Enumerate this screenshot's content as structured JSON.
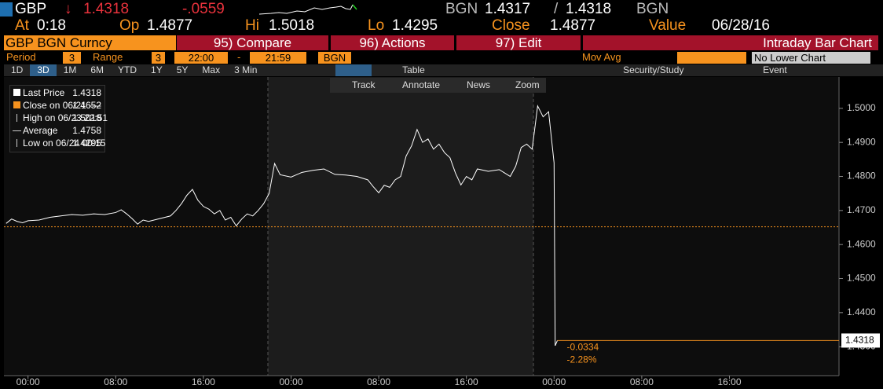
{
  "quote": {
    "ticker": "GBP",
    "arrow": "↓",
    "last": "1.4318",
    "change": "-.0559",
    "bid_source": "BGN",
    "bid": "1.4317",
    "separator": "/",
    "ask": "1.4318",
    "ask_source": "BGN"
  },
  "stats": {
    "at_label": "At",
    "at": "0:18",
    "open_label": "Op",
    "open": "1.4877",
    "high_label": "Hi",
    "high": "1.5018",
    "low_label": "Lo",
    "low": "1.4295",
    "close_label": "Close",
    "close": "1.4877",
    "value_label": "Value",
    "value": "06/28/16"
  },
  "toolbar": {
    "security": "GBP BGN Curncy",
    "buttons": [
      "95) Compare",
      "96) Actions",
      "97) Edit"
    ],
    "title": "Intraday Bar Chart"
  },
  "params": {
    "period_label": "Period",
    "period": "3",
    "range_label": "Range",
    "range": "3",
    "start": "22:00",
    "dash": "-",
    "end": "21:59",
    "source": "BGN",
    "mov_avg": "Mov Avg",
    "lower_chart": "No Lower Chart"
  },
  "tabs": [
    "1D",
    "3D",
    "1M",
    "6M",
    "YTD",
    "1Y",
    "5Y",
    "Max"
  ],
  "interval": "3 Min",
  "table": "Table",
  "study": "Security/Study",
  "event": "Event",
  "chart_tools": [
    "Track",
    "Annotate",
    "News",
    "Zoom"
  ],
  "legend": [
    {
      "label": "Last Price",
      "value": "1.4318"
    },
    {
      "label": "Close on 06/21 ----",
      "value": "1.4652"
    },
    {
      "label": "High on 06/23 22:51",
      "value": "1.5018"
    },
    {
      "label": "Average",
      "value": "1.4758"
    },
    {
      "label": "Low on 06/24 00:15",
      "value": "1.4295"
    }
  ],
  "chart_data": {
    "type": "line",
    "x": [
      -2,
      -1.5,
      -1,
      -0.5,
      0,
      1,
      2,
      3,
      4,
      5,
      6,
      7,
      8,
      8.5,
      9,
      9.5,
      10,
      10.5,
      11,
      12,
      13,
      13.5,
      14,
      14.5,
      15,
      15.5,
      16,
      16.5,
      17,
      17.5,
      18,
      18.5,
      19,
      19.5,
      20,
      20.5,
      21,
      21.5,
      22,
      22.5,
      23,
      24,
      25,
      26,
      27,
      28,
      29,
      30,
      31,
      31.5,
      32,
      32.5,
      33,
      33.5,
      34,
      34.5,
      35,
      35.5,
      36,
      36.5,
      37,
      37.5,
      38,
      38.5,
      39,
      39.5,
      40,
      40.5,
      41,
      42,
      43,
      43.5,
      44,
      44.5,
      45,
      45.5,
      46,
      46.5,
      47,
      47.5,
      48,
      48.1,
      48.3
    ],
    "series": [
      {
        "name": "Last Price",
        "color": "#ffffff",
        "values": [
          1.4662,
          1.4675,
          1.4668,
          1.4664,
          1.467,
          1.4672,
          1.468,
          1.4684,
          1.4688,
          1.4686,
          1.469,
          1.4688,
          1.4694,
          1.4702,
          1.469,
          1.4676,
          1.466,
          1.4672,
          1.4668,
          1.4676,
          1.4684,
          1.47,
          1.472,
          1.4745,
          1.4762,
          1.473,
          1.4712,
          1.4704,
          1.469,
          1.47,
          1.4672,
          1.468,
          1.4655,
          1.4675,
          1.469,
          1.4684,
          1.47,
          1.472,
          1.475,
          1.4838,
          1.4805,
          1.4798,
          1.4812,
          1.4818,
          1.4822,
          1.4806,
          1.4804,
          1.48,
          1.479,
          1.477,
          1.4752,
          1.4774,
          1.4768,
          1.479,
          1.48,
          1.486,
          1.489,
          1.4938,
          1.49,
          1.491,
          1.488,
          1.4895,
          1.487,
          1.4855,
          1.481,
          1.4775,
          1.48,
          1.479,
          1.4822,
          1.4815,
          1.482,
          1.481,
          1.48,
          1.483,
          1.4885,
          1.4895,
          1.488,
          1.5007,
          1.4975,
          1.499,
          1.484,
          1.4303,
          1.4318
        ]
      }
    ],
    "prev_close": {
      "value": 1.4652,
      "color": "#f7931e"
    },
    "last_price": {
      "value": 1.4318,
      "label": "1.4318",
      "color": "#f7931e"
    },
    "annotations": [
      "-0.0334",
      "-2.28%"
    ],
    "xlim": [
      -2.2,
      74
    ],
    "xticks": [
      {
        "value": 0,
        "label": "00:00"
      },
      {
        "value": 8,
        "label": "08:00"
      },
      {
        "value": 16,
        "label": "16:00"
      },
      {
        "value": 24,
        "label": "00:00"
      },
      {
        "value": 32,
        "label": "08:00"
      },
      {
        "value": 40,
        "label": "16:00"
      },
      {
        "value": 48,
        "label": "00:00"
      },
      {
        "value": 56,
        "label": "08:00"
      },
      {
        "value": 64,
        "label": "16:00"
      }
    ],
    "ylim": [
      1.4215,
      1.5092
    ],
    "yticks": [
      {
        "value": 1.43,
        "label": "1.4300"
      },
      {
        "value": 1.44,
        "label": "1.4400"
      },
      {
        "value": 1.45,
        "label": "1.4500"
      },
      {
        "value": 1.46,
        "label": "1.4600"
      },
      {
        "value": 1.47,
        "label": "1.4700"
      },
      {
        "value": 1.48,
        "label": "1.4800"
      },
      {
        "value": 1.49,
        "label": "1.4900"
      },
      {
        "value": 1.5,
        "label": "1.5000"
      }
    ]
  }
}
